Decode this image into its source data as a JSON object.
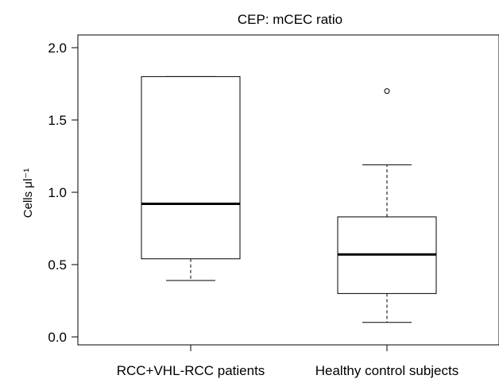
{
  "chart_data": {
    "type": "boxplot",
    "title": "CEP: mCEC ratio",
    "ylabel": "Cells μl⁻¹",
    "ylim": [
      0.0,
      2.0
    ],
    "yticks": [
      "0.0",
      "0.5",
      "1.0",
      "1.5",
      "2.0"
    ],
    "categories": [
      "RCC+VHL-RCC patients",
      "Healthy control subjects"
    ],
    "boxes": [
      {
        "whisker_low": 0.39,
        "q1": 0.54,
        "median": 0.92,
        "q3": 1.8,
        "whisker_high": 1.8,
        "outliers": []
      },
      {
        "whisker_low": 0.1,
        "q1": 0.3,
        "median": 0.57,
        "q3": 0.83,
        "whisker_high": 1.19,
        "outliers": [
          1.7
        ]
      }
    ],
    "grid": false,
    "legend": "none"
  }
}
